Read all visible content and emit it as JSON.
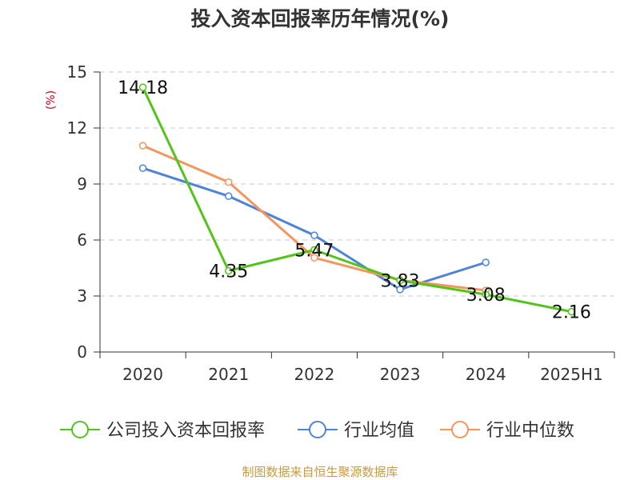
{
  "chart_data": {
    "type": "line",
    "title": "投入资本回报率历年情况(%)",
    "ylabel": "(%)",
    "xlabel": "",
    "categories": [
      "2020",
      "2021",
      "2022",
      "2023",
      "2024",
      "2025H1"
    ],
    "ylim": [
      0,
      15
    ],
    "yticks": [
      0,
      3,
      6,
      9,
      12,
      15
    ],
    "grid": true,
    "legend_position": "bottom",
    "series": [
      {
        "name": "公司投入资本回报率",
        "color": "#52c41a",
        "values": [
          14.18,
          4.35,
          5.47,
          3.83,
          3.08,
          2.16
        ],
        "labels": [
          "14.18",
          "4.35",
          "5.47",
          "3.83",
          "3.08",
          "2.16"
        ]
      },
      {
        "name": "行业均值",
        "color": "#4e84d8",
        "values": [
          9.85,
          8.35,
          6.25,
          3.35,
          4.8,
          null
        ]
      },
      {
        "name": "行业中位数",
        "color": "#f5955f",
        "values": [
          11.05,
          9.1,
          5.05,
          3.85,
          3.3,
          null
        ]
      }
    ]
  },
  "footer": {
    "text": "制图数据来自恒生聚源数据库",
    "color": "#c89b3c"
  }
}
